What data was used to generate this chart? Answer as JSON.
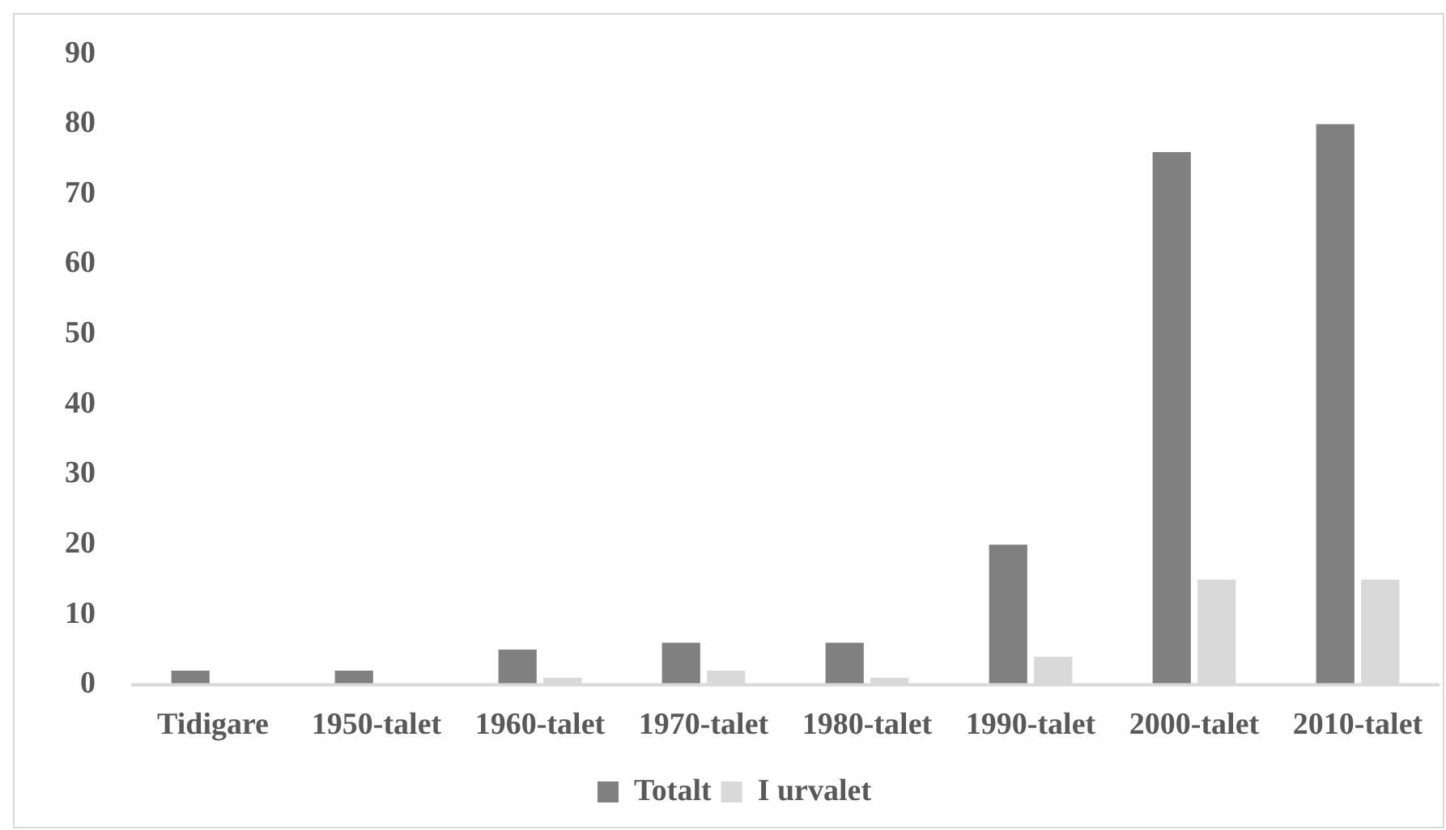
{
  "chart_data": {
    "type": "bar",
    "categories": [
      "Tidigare",
      "1950-talet",
      "1960-talet",
      "1970-talet",
      "1980-talet",
      "1990-talet",
      "2000-talet",
      "2010-talet"
    ],
    "series": [
      {
        "name": "Totalt",
        "color": "#808080",
        "values": [
          2,
          2,
          5,
          6,
          6,
          20,
          76,
          80
        ]
      },
      {
        "name": "I urvalet",
        "color": "#d9d9d9",
        "values": [
          0,
          0,
          1,
          2,
          1,
          4,
          15,
          15
        ]
      }
    ],
    "ylim": [
      0,
      90
    ],
    "yticks": [
      0,
      10,
      20,
      30,
      40,
      50,
      60,
      70,
      80,
      90
    ],
    "grid": false,
    "legend": "bottom"
  }
}
